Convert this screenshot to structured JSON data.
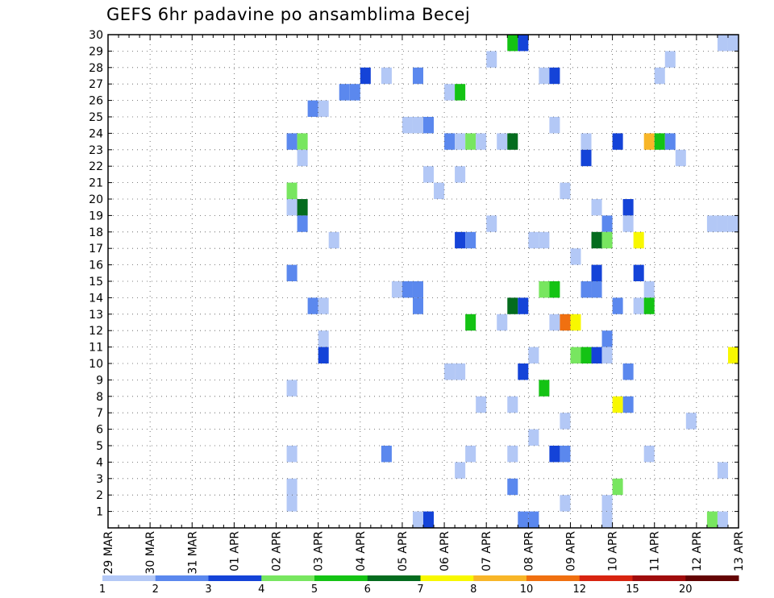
{
  "chart_data": {
    "type": "heatmap",
    "title": "GEFS 6hr padavine po ansamblima Becej",
    "xlabel": "",
    "ylabel": "",
    "x_ticks": [
      "29 MAR",
      "30 MAR",
      "31 MAR",
      "01 APR",
      "02 APR",
      "03 APR",
      "04 APR",
      "05 APR",
      "06 APR",
      "07 APR",
      "08 APR",
      "09 APR",
      "10 APR",
      "11 APR",
      "12 APR",
      "13 APR"
    ],
    "y_ticks": [
      1,
      2,
      3,
      4,
      5,
      6,
      7,
      8,
      9,
      10,
      11,
      12,
      13,
      14,
      15,
      16,
      17,
      18,
      19,
      20,
      21,
      22,
      23,
      24,
      25,
      26,
      27,
      28,
      29,
      30
    ],
    "xlim": [
      0,
      60
    ],
    "ylim": [
      0,
      30
    ],
    "x_step_hours": 6,
    "grid": true,
    "colorbar": {
      "position": "bottom",
      "labels": [
        "1",
        "2",
        "3",
        "4",
        "5",
        "6",
        "7",
        "8",
        "10",
        "12",
        "15",
        "20"
      ],
      "colors": [
        "#b3c8f6",
        "#5b88ee",
        "#1443d8",
        "#78e660",
        "#14c314",
        "#046c1e",
        "#f8f800",
        "#f8b628",
        "#f07010",
        "#d82410",
        "#a00c0c",
        "#640404"
      ]
    },
    "cells": [
      {
        "t": 38.5,
        "m": 30,
        "v": 5
      },
      {
        "t": 39.5,
        "m": 30,
        "v": 3
      },
      {
        "t": 58.5,
        "m": 30,
        "v": 1
      },
      {
        "t": 59.5,
        "m": 30,
        "v": 1
      },
      {
        "t": 36.5,
        "m": 29,
        "v": 1
      },
      {
        "t": 53.5,
        "m": 29,
        "v": 1
      },
      {
        "t": 24.5,
        "m": 28,
        "v": 3
      },
      {
        "t": 26.5,
        "m": 28,
        "v": 1
      },
      {
        "t": 29.5,
        "m": 28,
        "v": 2
      },
      {
        "t": 41.5,
        "m": 28,
        "v": 1
      },
      {
        "t": 42.5,
        "m": 28,
        "v": 3
      },
      {
        "t": 52.5,
        "m": 28,
        "v": 1
      },
      {
        "t": 22.5,
        "m": 27,
        "v": 2
      },
      {
        "t": 23.5,
        "m": 27,
        "v": 2
      },
      {
        "t": 32.5,
        "m": 27,
        "v": 1
      },
      {
        "t": 33.5,
        "m": 27,
        "v": 5
      },
      {
        "t": 19.5,
        "m": 26,
        "v": 2
      },
      {
        "t": 20.5,
        "m": 26,
        "v": 1
      },
      {
        "t": 28.5,
        "m": 25,
        "v": 1
      },
      {
        "t": 29.5,
        "m": 25,
        "v": 1
      },
      {
        "t": 30.5,
        "m": 25,
        "v": 2
      },
      {
        "t": 42.5,
        "m": 25,
        "v": 1
      },
      {
        "t": 17.5,
        "m": 24,
        "v": 2
      },
      {
        "t": 18.5,
        "m": 24,
        "v": 4
      },
      {
        "t": 32.5,
        "m": 24,
        "v": 2
      },
      {
        "t": 33.5,
        "m": 24,
        "v": 1
      },
      {
        "t": 34.5,
        "m": 24,
        "v": 4
      },
      {
        "t": 35.5,
        "m": 24,
        "v": 1
      },
      {
        "t": 37.5,
        "m": 24,
        "v": 1
      },
      {
        "t": 38.5,
        "m": 24,
        "v": 6
      },
      {
        "t": 45.5,
        "m": 24,
        "v": 1
      },
      {
        "t": 48.5,
        "m": 24,
        "v": 3
      },
      {
        "t": 51.5,
        "m": 24,
        "v": 8
      },
      {
        "t": 52.5,
        "m": 24,
        "v": 5
      },
      {
        "t": 53.5,
        "m": 24,
        "v": 2
      },
      {
        "t": 18.5,
        "m": 23,
        "v": 1
      },
      {
        "t": 45.5,
        "m": 23,
        "v": 3
      },
      {
        "t": 54.5,
        "m": 23,
        "v": 1
      },
      {
        "t": 30.5,
        "m": 22,
        "v": 1
      },
      {
        "t": 33.5,
        "m": 22,
        "v": 1
      },
      {
        "t": 31.5,
        "m": 21,
        "v": 1
      },
      {
        "t": 17.5,
        "m": 21,
        "v": 4
      },
      {
        "t": 43.5,
        "m": 21,
        "v": 1
      },
      {
        "t": 17.5,
        "m": 20,
        "v": 1
      },
      {
        "t": 18.5,
        "m": 20,
        "v": 6
      },
      {
        "t": 46.5,
        "m": 20,
        "v": 1
      },
      {
        "t": 49.5,
        "m": 20,
        "v": 3
      },
      {
        "t": 36.5,
        "m": 19,
        "v": 1
      },
      {
        "t": 18.5,
        "m": 19,
        "v": 2
      },
      {
        "t": 47.5,
        "m": 19,
        "v": 2
      },
      {
        "t": 49.5,
        "m": 19,
        "v": 1
      },
      {
        "t": 57.5,
        "m": 19,
        "v": 1
      },
      {
        "t": 58.5,
        "m": 19,
        "v": 1
      },
      {
        "t": 59.5,
        "m": 19,
        "v": 1
      },
      {
        "t": 21.5,
        "m": 18,
        "v": 1
      },
      {
        "t": 33.5,
        "m": 18,
        "v": 3
      },
      {
        "t": 34.5,
        "m": 18,
        "v": 2
      },
      {
        "t": 40.5,
        "m": 18,
        "v": 1
      },
      {
        "t": 41.5,
        "m": 18,
        "v": 1
      },
      {
        "t": 46.5,
        "m": 18,
        "v": 6
      },
      {
        "t": 47.5,
        "m": 18,
        "v": 4
      },
      {
        "t": 50.5,
        "m": 18,
        "v": 7
      },
      {
        "t": 44.5,
        "m": 17,
        "v": 1
      },
      {
        "t": 17.5,
        "m": 16,
        "v": 2
      },
      {
        "t": 46.5,
        "m": 16,
        "v": 3
      },
      {
        "t": 50.5,
        "m": 16,
        "v": 3
      },
      {
        "t": 27.5,
        "m": 15,
        "v": 1
      },
      {
        "t": 28.5,
        "m": 15,
        "v": 2
      },
      {
        "t": 29.5,
        "m": 15,
        "v": 2
      },
      {
        "t": 41.5,
        "m": 15,
        "v": 4
      },
      {
        "t": 42.5,
        "m": 15,
        "v": 5
      },
      {
        "t": 45.5,
        "m": 15,
        "v": 2
      },
      {
        "t": 46.5,
        "m": 15,
        "v": 2
      },
      {
        "t": 51.5,
        "m": 15,
        "v": 1
      },
      {
        "t": 19.5,
        "m": 14,
        "v": 2
      },
      {
        "t": 20.5,
        "m": 14,
        "v": 1
      },
      {
        "t": 29.5,
        "m": 14,
        "v": 2
      },
      {
        "t": 38.5,
        "m": 14,
        "v": 6
      },
      {
        "t": 39.5,
        "m": 14,
        "v": 3
      },
      {
        "t": 48.5,
        "m": 14,
        "v": 2
      },
      {
        "t": 50.5,
        "m": 14,
        "v": 1
      },
      {
        "t": 51.5,
        "m": 14,
        "v": 5
      },
      {
        "t": 34.5,
        "m": 13,
        "v": 5
      },
      {
        "t": 37.5,
        "m": 13,
        "v": 1
      },
      {
        "t": 42.5,
        "m": 13,
        "v": 1
      },
      {
        "t": 43.5,
        "m": 13,
        "v": 9
      },
      {
        "t": 44.5,
        "m": 13,
        "v": 7
      },
      {
        "t": 20.5,
        "m": 12,
        "v": 1
      },
      {
        "t": 47.5,
        "m": 12,
        "v": 2
      },
      {
        "t": 20.5,
        "m": 11,
        "v": 3
      },
      {
        "t": 40.5,
        "m": 11,
        "v": 1
      },
      {
        "t": 44.5,
        "m": 11,
        "v": 4
      },
      {
        "t": 45.5,
        "m": 11,
        "v": 5
      },
      {
        "t": 46.5,
        "m": 11,
        "v": 3
      },
      {
        "t": 47.5,
        "m": 11,
        "v": 1
      },
      {
        "t": 59.5,
        "m": 11,
        "v": 7
      },
      {
        "t": 32.5,
        "m": 10,
        "v": 1
      },
      {
        "t": 33.5,
        "m": 10,
        "v": 1
      },
      {
        "t": 39.5,
        "m": 10,
        "v": 3
      },
      {
        "t": 49.5,
        "m": 10,
        "v": 2
      },
      {
        "t": 17.5,
        "m": 9,
        "v": 1
      },
      {
        "t": 41.5,
        "m": 9,
        "v": 5
      },
      {
        "t": 35.5,
        "m": 8,
        "v": 1
      },
      {
        "t": 38.5,
        "m": 8,
        "v": 1
      },
      {
        "t": 48.5,
        "m": 8,
        "v": 7
      },
      {
        "t": 49.5,
        "m": 8,
        "v": 2
      },
      {
        "t": 43.5,
        "m": 7,
        "v": 1
      },
      {
        "t": 55.5,
        "m": 7,
        "v": 1
      },
      {
        "t": 40.5,
        "m": 6,
        "v": 1
      },
      {
        "t": 17.5,
        "m": 5,
        "v": 1
      },
      {
        "t": 26.5,
        "m": 5,
        "v": 2
      },
      {
        "t": 34.5,
        "m": 5,
        "v": 1
      },
      {
        "t": 38.5,
        "m": 5,
        "v": 1
      },
      {
        "t": 42.5,
        "m": 5,
        "v": 3
      },
      {
        "t": 43.5,
        "m": 5,
        "v": 2
      },
      {
        "t": 51.5,
        "m": 5,
        "v": 1
      },
      {
        "t": 33.5,
        "m": 4,
        "v": 1
      },
      {
        "t": 58.5,
        "m": 4,
        "v": 1
      },
      {
        "t": 17.5,
        "m": 3,
        "v": 1
      },
      {
        "t": 38.5,
        "m": 3,
        "v": 2
      },
      {
        "t": 48.5,
        "m": 3,
        "v": 4
      },
      {
        "t": 17.5,
        "m": 2,
        "v": 1
      },
      {
        "t": 43.5,
        "m": 2,
        "v": 1
      },
      {
        "t": 47.5,
        "m": 2,
        "v": 1
      },
      {
        "t": 29.5,
        "m": 1,
        "v": 1
      },
      {
        "t": 30.5,
        "m": 1,
        "v": 3
      },
      {
        "t": 39.5,
        "m": 1,
        "v": 2
      },
      {
        "t": 40.5,
        "m": 1,
        "v": 2
      },
      {
        "t": 47.5,
        "m": 1,
        "v": 1
      },
      {
        "t": 57.5,
        "m": 1,
        "v": 4
      },
      {
        "t": 58.5,
        "m": 1,
        "v": 1
      }
    ]
  }
}
